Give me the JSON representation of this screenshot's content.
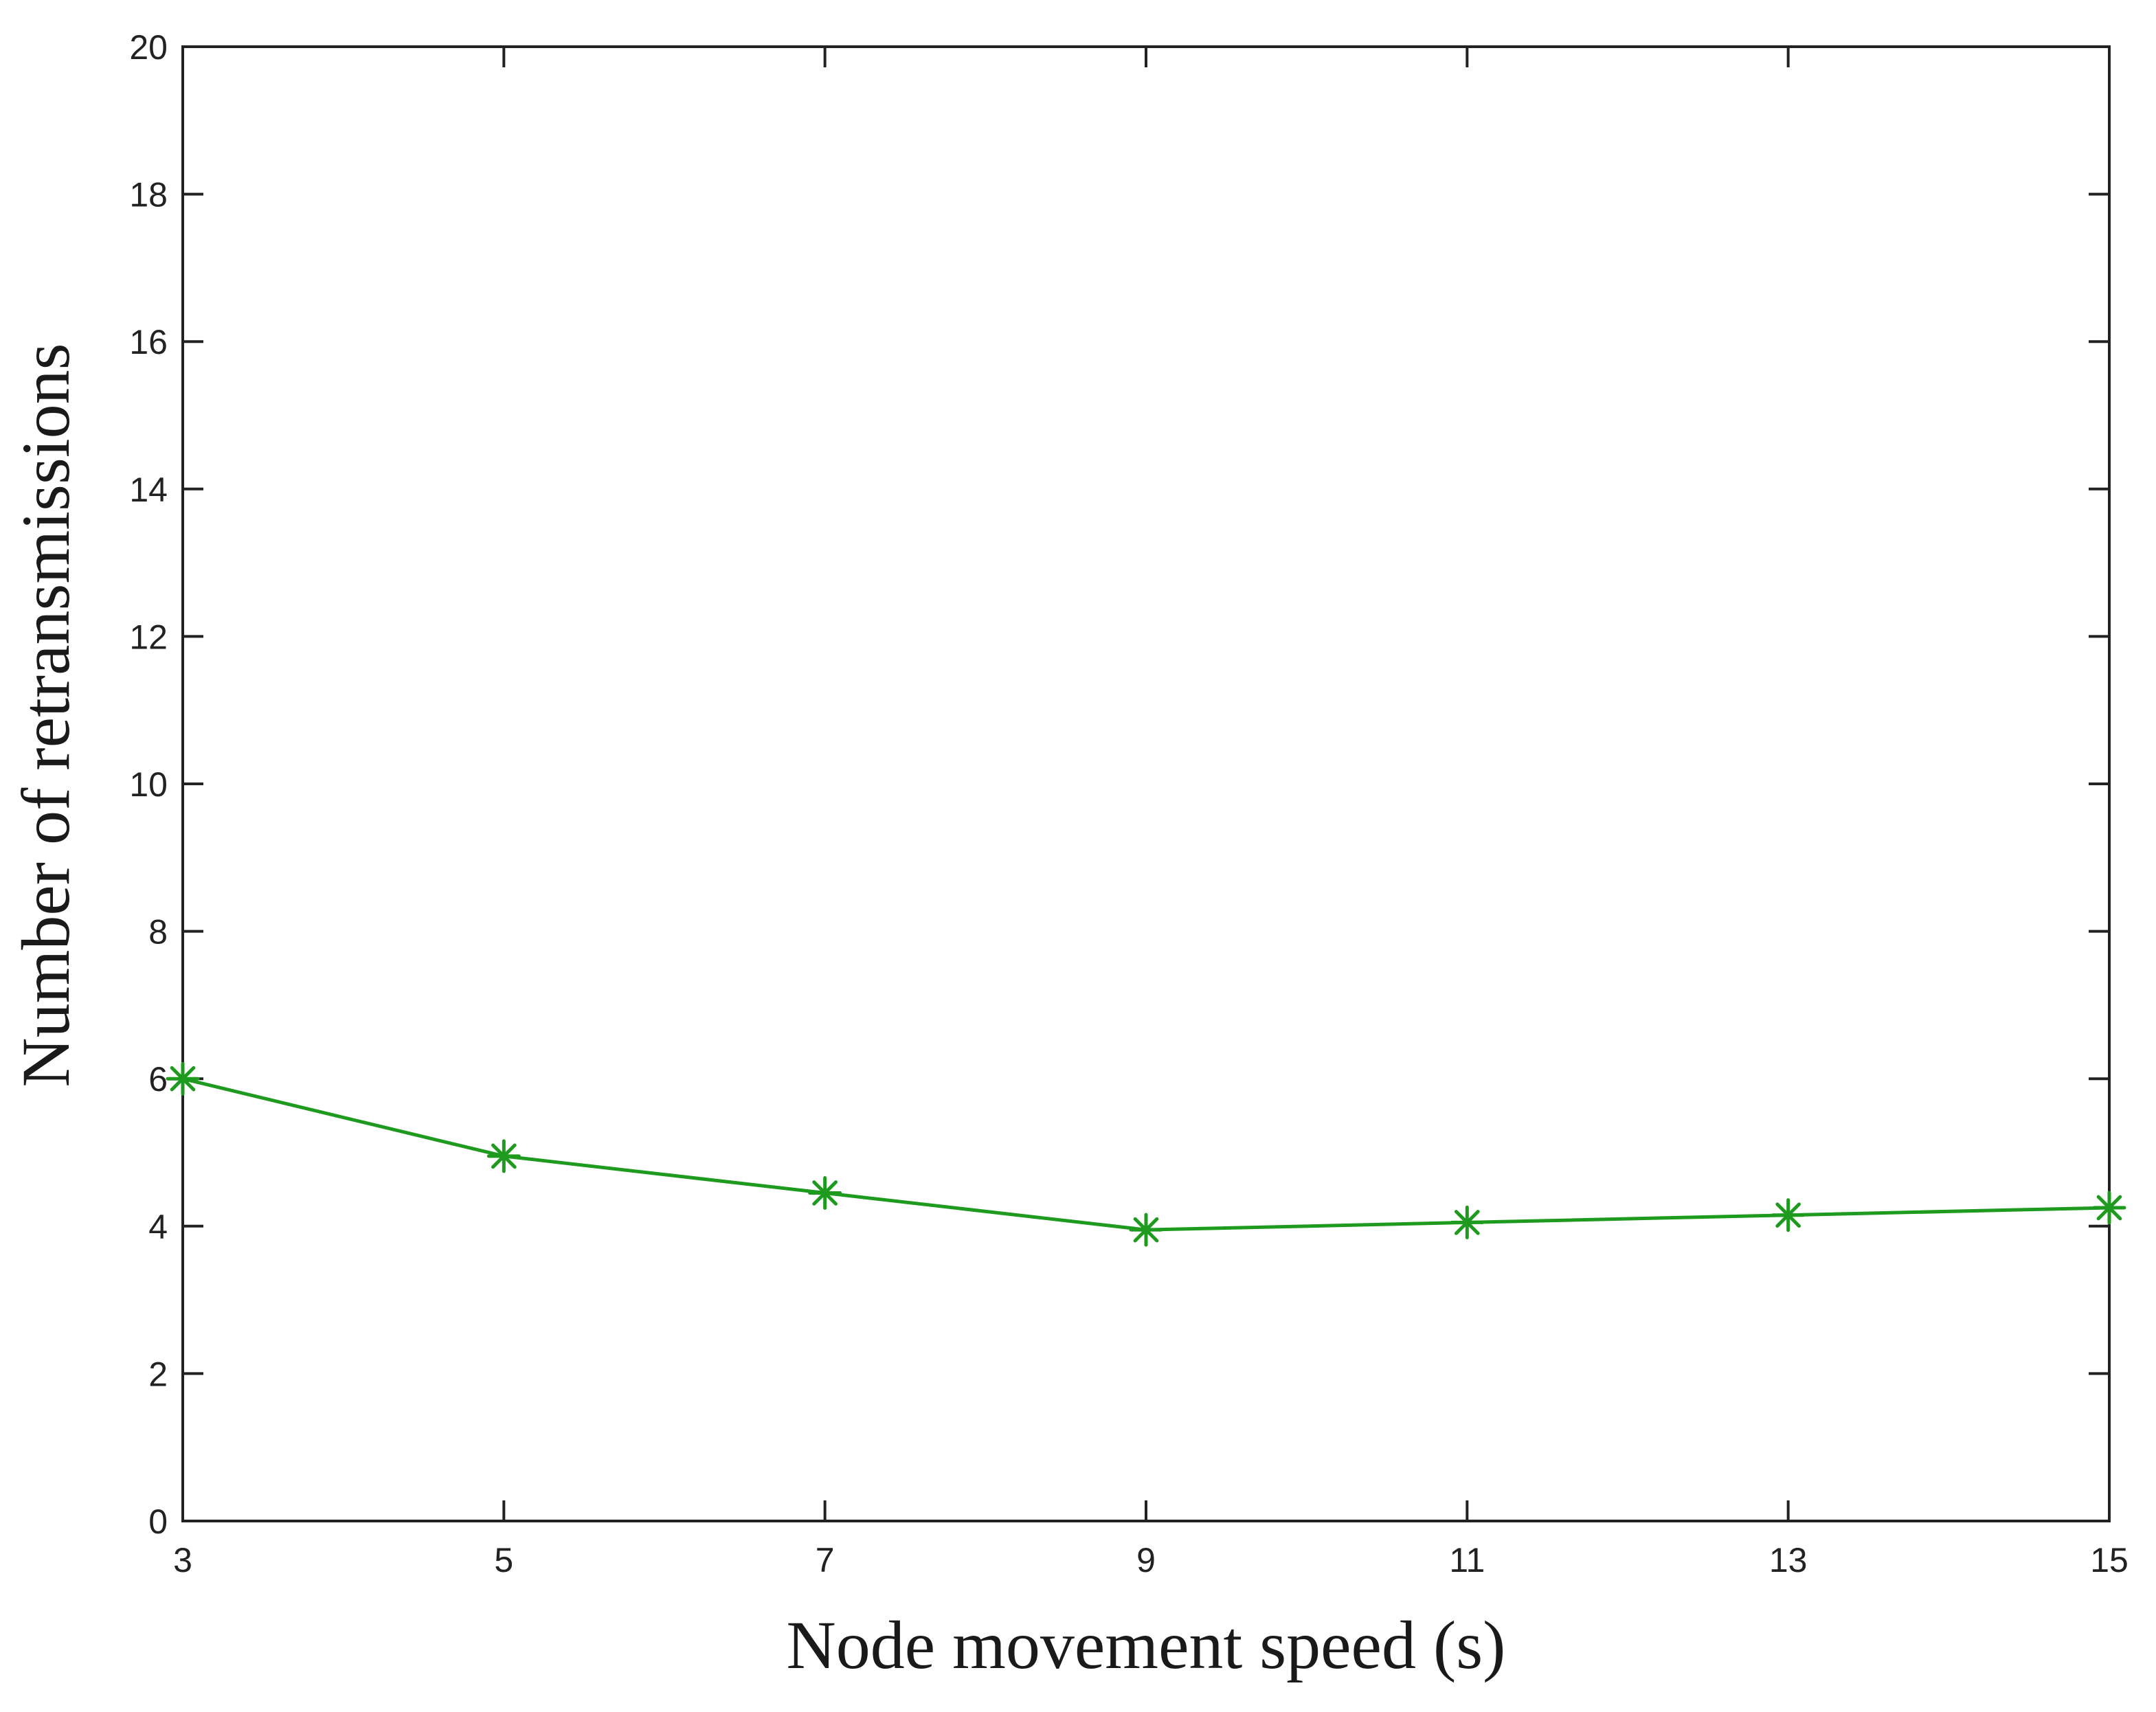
{
  "chart_data": {
    "type": "line",
    "title": "",
    "xlabel": "Node movement speed (s)",
    "ylabel": "Number of retransmissions",
    "x": [
      3,
      5,
      7,
      9,
      11,
      13,
      15
    ],
    "xlim": [
      3,
      15
    ],
    "ylim": [
      0,
      20
    ],
    "xticks": [
      3,
      5,
      7,
      9,
      11,
      13,
      15
    ],
    "xtick_labels": [
      "3",
      "5",
      "7",
      "9",
      "11",
      "13",
      "15"
    ],
    "yticks": [
      0,
      2,
      4,
      6,
      8,
      10,
      12,
      14,
      16,
      18,
      20
    ],
    "ytick_labels": [
      "0",
      "2",
      "4",
      "6",
      "8",
      "10",
      "12",
      "14",
      "16",
      "18",
      "20"
    ],
    "grid": false,
    "series": [
      {
        "name": "retransmissions",
        "values": [
          6.0,
          4.95,
          4.45,
          3.95,
          4.05,
          4.15,
          4.25
        ],
        "color": "#1e9a1e",
        "marker": "asterisk"
      }
    ]
  }
}
